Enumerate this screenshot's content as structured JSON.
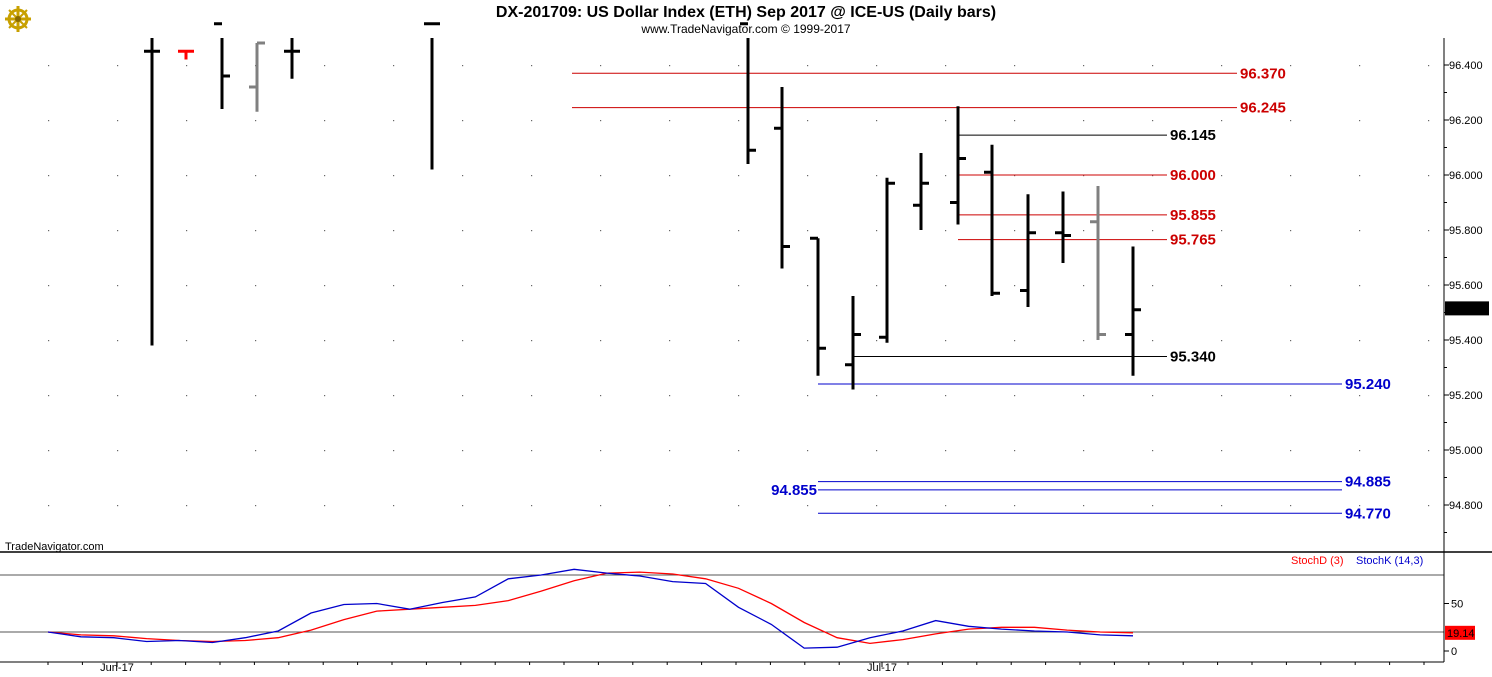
{
  "header": {
    "title": "DX-201709:  US Dollar Index (ETH) Sep 2017 @ ICE-US  (Daily bars)",
    "copyright": "www.TradeNavigator.com © 1999-2017",
    "logo_icon": "ship-wheel-logo-icon"
  },
  "watermark": "TradeNavigator.com",
  "colors": {
    "up_bar": "#000000",
    "gray_bar": "#808080",
    "red_bar": "#ff0000",
    "resistance": "#cc0000",
    "support_black": "#000000",
    "support_blue": "#0000cc",
    "stoch_d": "#ff0000",
    "stoch_k": "#0000cc",
    "last_price_bg": "#000000",
    "stoch_last_bg": "#ff0000"
  },
  "last_price_label": "95.515",
  "stoch_last_label": "19.14",
  "chart_data": [
    {
      "type": "ohlc",
      "title": "DX-201709:  US Dollar Index (ETH) Sep 2017 @ ICE-US  (Daily bars)",
      "x_tick_labels": [
        "Jun-17",
        "Jul-17"
      ],
      "y_tick_labels": [
        "96.400",
        "96.200",
        "96.000",
        "95.800",
        "95.600",
        "95.400",
        "95.200",
        "95.000",
        "94.800"
      ],
      "ylim": [
        94.65,
        96.5
      ],
      "grid": true,
      "bars": [
        {
          "open": 96.45,
          "high": 96.55,
          "low": 95.38,
          "close": 96.45,
          "color": "black"
        },
        {
          "open": 96.45,
          "high": 96.45,
          "low": 96.42,
          "close": 96.45,
          "color": "red"
        },
        {
          "open": 96.55,
          "high": 96.55,
          "low": 96.24,
          "close": 96.36,
          "color": "black"
        },
        {
          "open": 96.32,
          "high": 96.48,
          "low": 96.23,
          "close": 96.48,
          "color": "gray"
        },
        {
          "open": 96.45,
          "high": 96.55,
          "low": 96.35,
          "close": 96.45,
          "color": "black"
        },
        {
          "open": 96.55,
          "high": 96.55,
          "low": 96.02,
          "close": 96.55,
          "color": "black"
        },
        {
          "open": 96.55,
          "high": 96.55,
          "low": 96.04,
          "close": 96.09,
          "color": "black"
        },
        {
          "open": 96.17,
          "high": 96.32,
          "low": 95.66,
          "close": 95.74,
          "color": "black"
        },
        {
          "open": 95.77,
          "high": 95.77,
          "low": 95.27,
          "close": 95.37,
          "color": "black"
        },
        {
          "open": 95.31,
          "high": 95.56,
          "low": 95.22,
          "close": 95.42,
          "color": "black"
        },
        {
          "open": 95.41,
          "high": 95.99,
          "low": 95.39,
          "close": 95.97,
          "color": "black"
        },
        {
          "open": 95.89,
          "high": 96.08,
          "low": 95.8,
          "close": 95.97,
          "color": "black"
        },
        {
          "open": 95.9,
          "high": 96.25,
          "low": 95.82,
          "close": 96.06,
          "color": "black"
        },
        {
          "open": 96.01,
          "high": 96.11,
          "low": 95.56,
          "close": 95.57,
          "color": "black"
        },
        {
          "open": 95.58,
          "high": 95.93,
          "low": 95.52,
          "close": 95.79,
          "color": "black"
        },
        {
          "open": 95.79,
          "high": 95.94,
          "low": 95.68,
          "close": 95.78,
          "color": "black"
        },
        {
          "open": 95.83,
          "high": 95.96,
          "low": 95.4,
          "close": 95.42,
          "color": "gray"
        },
        {
          "open": 95.42,
          "high": 95.74,
          "low": 95.27,
          "close": 95.51,
          "color": "black"
        }
      ],
      "levels": [
        {
          "value": 96.37,
          "label": "96.370",
          "color": "red"
        },
        {
          "value": 96.245,
          "label": "96.245",
          "color": "red"
        },
        {
          "value": 96.145,
          "label": "96.145",
          "color": "black"
        },
        {
          "value": 96.0,
          "label": "96.000",
          "color": "red"
        },
        {
          "value": 95.855,
          "label": "95.855",
          "color": "red"
        },
        {
          "value": 95.765,
          "label": "95.765",
          "color": "red"
        },
        {
          "value": 95.34,
          "label": "95.340",
          "color": "black"
        },
        {
          "value": 95.24,
          "label": "95.240",
          "color": "blue"
        },
        {
          "value": 94.885,
          "label": "94.885",
          "color": "blue"
        },
        {
          "value": 94.855,
          "label": "94.855",
          "color": "blue"
        },
        {
          "value": 94.77,
          "label": "94.770",
          "color": "blue"
        }
      ],
      "last_value": 95.515
    },
    {
      "type": "line",
      "legend": [
        "StochD (3)",
        "StochK (14,3)"
      ],
      "y_tick_labels": [
        "50",
        "0"
      ],
      "ylim": [
        0,
        100
      ],
      "reference_lines": [
        80,
        20
      ],
      "series": [
        {
          "name": "StochD (3)",
          "color": "red",
          "values": [
            20,
            17,
            16,
            13,
            11,
            10,
            11,
            14,
            22,
            33,
            42,
            44,
            46,
            48,
            53,
            63,
            74,
            82,
            83,
            81,
            76,
            66,
            50,
            30,
            14,
            8,
            12,
            18,
            23,
            25,
            25,
            22,
            20,
            19.14
          ]
        },
        {
          "name": "StochK (14,3)",
          "color": "blue",
          "values": [
            20,
            15,
            14,
            10,
            11,
            9,
            14,
            21,
            40,
            49,
            50,
            44,
            51,
            57,
            76,
            80,
            86,
            82,
            79,
            73,
            71,
            46,
            28,
            3,
            4,
            14,
            21,
            32,
            26,
            23,
            21,
            20,
            17,
            16
          ]
        }
      ],
      "last_value": 19.14
    }
  ]
}
